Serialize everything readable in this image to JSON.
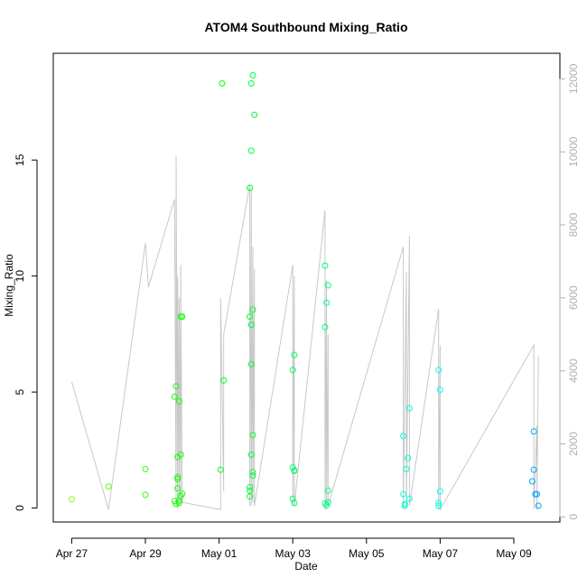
{
  "chart_data": {
    "type": "scatter",
    "title": "ATOM4 Southbound Mixing_Ratio",
    "xlabel": "Date",
    "ylabel": "Mixing_Ratio",
    "x_tick_labels": [
      "Apr 27",
      "Apr 29",
      "May 01",
      "May 03",
      "May 05",
      "May 07",
      "May 09"
    ],
    "x_tick_dates": [
      "2018-04-27",
      "2018-04-29",
      "2018-05-01",
      "2018-05-03",
      "2018-05-05",
      "2018-05-07",
      "2018-05-09"
    ],
    "xlim": [
      "2018-04-26T12:00",
      "2018-05-10T06:00"
    ],
    "ylim": [
      -0.6,
      19.6
    ],
    "y_ticks": [
      0,
      5,
      10,
      15
    ],
    "y2_ticks": [
      0,
      2000,
      4000,
      6000,
      8000,
      10000,
      12000
    ],
    "y2lim": [
      -140,
      12700
    ],
    "grid": false,
    "points": [
      [
        "2018-04-27T00:00",
        0.38
      ],
      [
        "2018-04-28T00:00",
        0.93
      ],
      [
        "2018-04-29T00:00",
        1.68
      ],
      [
        "2018-04-29T00:00",
        0.57
      ],
      [
        "2018-04-29T19:00",
        0.3
      ],
      [
        "2018-04-29T20:00",
        0.18
      ],
      [
        "2018-04-29T19:00",
        4.8
      ],
      [
        "2018-04-29T20:00",
        5.25
      ],
      [
        "2018-04-29T21:00",
        2.2
      ],
      [
        "2018-04-29T21:00",
        1.25
      ],
      [
        "2018-04-29T21:00",
        1.33
      ],
      [
        "2018-04-29T21:00",
        0.85
      ],
      [
        "2018-04-29T22:00",
        4.6
      ],
      [
        "2018-04-29T22:00",
        0.32
      ],
      [
        "2018-04-29T22:00",
        0.22
      ],
      [
        "2018-04-29T23:00",
        0.52
      ],
      [
        "2018-04-29T23:00",
        2.3
      ],
      [
        "2018-04-29T23:00",
        8.25
      ],
      [
        "2018-04-30T00:00",
        8.25
      ],
      [
        "2018-04-30T00:00",
        0.62
      ],
      [
        "2018-05-01T02:00",
        18.3
      ],
      [
        "2018-05-01T01:00",
        1.65
      ],
      [
        "2018-05-01T03:00",
        5.5
      ],
      [
        "2018-05-01T20:00",
        0.75
      ],
      [
        "2018-05-01T20:00",
        0.9
      ],
      [
        "2018-05-01T20:00",
        0.5
      ],
      [
        "2018-05-01T20:00",
        8.25
      ],
      [
        "2018-05-01T20:00",
        13.8
      ],
      [
        "2018-05-01T21:00",
        15.4
      ],
      [
        "2018-05-01T21:00",
        18.3
      ],
      [
        "2018-05-01T22:00",
        18.65
      ],
      [
        "2018-05-01T23:00",
        16.95
      ],
      [
        "2018-05-01T21:00",
        6.2
      ],
      [
        "2018-05-01T21:00",
        7.9
      ],
      [
        "2018-05-01T22:00",
        8.55
      ],
      [
        "2018-05-01T21:00",
        2.3
      ],
      [
        "2018-05-01T22:00",
        1.4
      ],
      [
        "2018-05-01T22:00",
        1.55
      ],
      [
        "2018-05-01T22:00",
        3.15
      ],
      [
        "2018-05-03T00:00",
        0.4
      ],
      [
        "2018-05-03T01:00",
        0.22
      ],
      [
        "2018-05-03T00:00",
        1.75
      ],
      [
        "2018-05-03T01:00",
        1.62
      ],
      [
        "2018-05-03T01:00",
        1.6
      ],
      [
        "2018-05-03T00:00",
        5.95
      ],
      [
        "2018-05-03T01:00",
        6.6
      ],
      [
        "2018-05-03T21:00",
        10.45
      ],
      [
        "2018-05-03T21:00",
        7.8
      ],
      [
        "2018-05-03T22:00",
        8.85
      ],
      [
        "2018-05-03T23:00",
        9.6
      ],
      [
        "2018-05-03T21:00",
        0.2
      ],
      [
        "2018-05-03T22:00",
        0.12
      ],
      [
        "2018-05-03T23:00",
        0.25
      ],
      [
        "2018-05-03T23:00",
        0.75
      ],
      [
        "2018-05-06T00:00",
        3.1
      ],
      [
        "2018-05-06T00:00",
        0.6
      ],
      [
        "2018-05-06T01:00",
        0.12
      ],
      [
        "2018-05-06T01:00",
        0.18
      ],
      [
        "2018-05-06T02:00",
        1.68
      ],
      [
        "2018-05-06T03:00",
        2.15
      ],
      [
        "2018-05-06T04:00",
        4.3
      ],
      [
        "2018-05-06T04:00",
        0.4
      ],
      [
        "2018-05-06T23:00",
        0.1
      ],
      [
        "2018-05-06T23:00",
        0.22
      ],
      [
        "2018-05-06T23:00",
        5.95
      ],
      [
        "2018-05-07T00:00",
        5.1
      ],
      [
        "2018-05-07T00:00",
        0.72
      ],
      [
        "2018-05-09T13:00",
        3.3
      ],
      [
        "2018-05-09T13:00",
        1.65
      ],
      [
        "2018-05-09T12:00",
        1.15
      ],
      [
        "2018-05-09T14:00",
        0.6
      ],
      [
        "2018-05-09T15:00",
        0.6
      ],
      [
        "2018-05-09T16:00",
        0.1
      ]
    ],
    "y2_series": {
      "name": "",
      "color": "#c8c8c8",
      "points": [
        [
          "2018-04-27T00:00",
          3700
        ],
        [
          "2018-04-28T00:00",
          200
        ],
        [
          "2018-04-29T00:00",
          7500
        ],
        [
          "2018-04-29T02:00",
          6300
        ],
        [
          "2018-04-29T19:00",
          8700
        ],
        [
          "2018-04-29T20:00",
          300
        ],
        [
          "2018-04-29T20:00",
          9900
        ],
        [
          "2018-04-29T21:00",
          200
        ],
        [
          "2018-04-29T21:00",
          6600
        ],
        [
          "2018-04-29T22:00",
          300
        ],
        [
          "2018-04-29T22:00",
          6000
        ],
        [
          "2018-04-29T23:00",
          400
        ],
        [
          "2018-04-29T23:00",
          6900
        ],
        [
          "2018-04-30T00:00",
          400
        ],
        [
          "2018-05-01T01:00",
          200
        ],
        [
          "2018-05-01T01:00",
          6000
        ],
        [
          "2018-05-01T03:00",
          700
        ],
        [
          "2018-05-01T03:00",
          5000
        ],
        [
          "2018-05-01T20:00",
          9100
        ],
        [
          "2018-05-01T20:00",
          300
        ],
        [
          "2018-05-01T21:00",
          9000
        ],
        [
          "2018-05-01T21:00",
          300
        ],
        [
          "2018-05-01T22:00",
          7400
        ],
        [
          "2018-05-01T22:00",
          400
        ],
        [
          "2018-05-01T23:00",
          6800
        ],
        [
          "2018-05-01T23:00",
          300
        ],
        [
          "2018-05-03T00:00",
          6900
        ],
        [
          "2018-05-03T00:00",
          300
        ],
        [
          "2018-05-03T01:00",
          6600
        ],
        [
          "2018-05-03T01:00",
          300
        ],
        [
          "2018-05-03T21:00",
          8400
        ],
        [
          "2018-05-03T21:00",
          200
        ],
        [
          "2018-05-03T22:00",
          6500
        ],
        [
          "2018-05-03T22:00",
          200
        ],
        [
          "2018-05-03T23:00",
          5000
        ],
        [
          "2018-05-03T23:00",
          300
        ],
        [
          "2018-05-06T00:00",
          7400
        ],
        [
          "2018-05-06T00:00",
          200
        ],
        [
          "2018-05-06T02:00",
          6700
        ],
        [
          "2018-05-06T02:00",
          200
        ],
        [
          "2018-05-06T04:00",
          7700
        ],
        [
          "2018-05-06T04:00",
          300
        ],
        [
          "2018-05-06T23:00",
          5700
        ],
        [
          "2018-05-06T23:00",
          200
        ],
        [
          "2018-05-07T00:00",
          4700
        ],
        [
          "2018-05-07T00:00",
          200
        ],
        [
          "2018-05-09T13:00",
          4700
        ],
        [
          "2018-05-09T13:00",
          200
        ],
        [
          "2018-05-09T15:00",
          2500
        ],
        [
          "2018-05-09T15:00",
          200
        ],
        [
          "2018-05-09T16:00",
          4400
        ]
      ]
    },
    "colors": {
      "axis": "#000000",
      "y2_axis": "#b0b0b0",
      "palette_note": "green-to-blue by date"
    }
  }
}
